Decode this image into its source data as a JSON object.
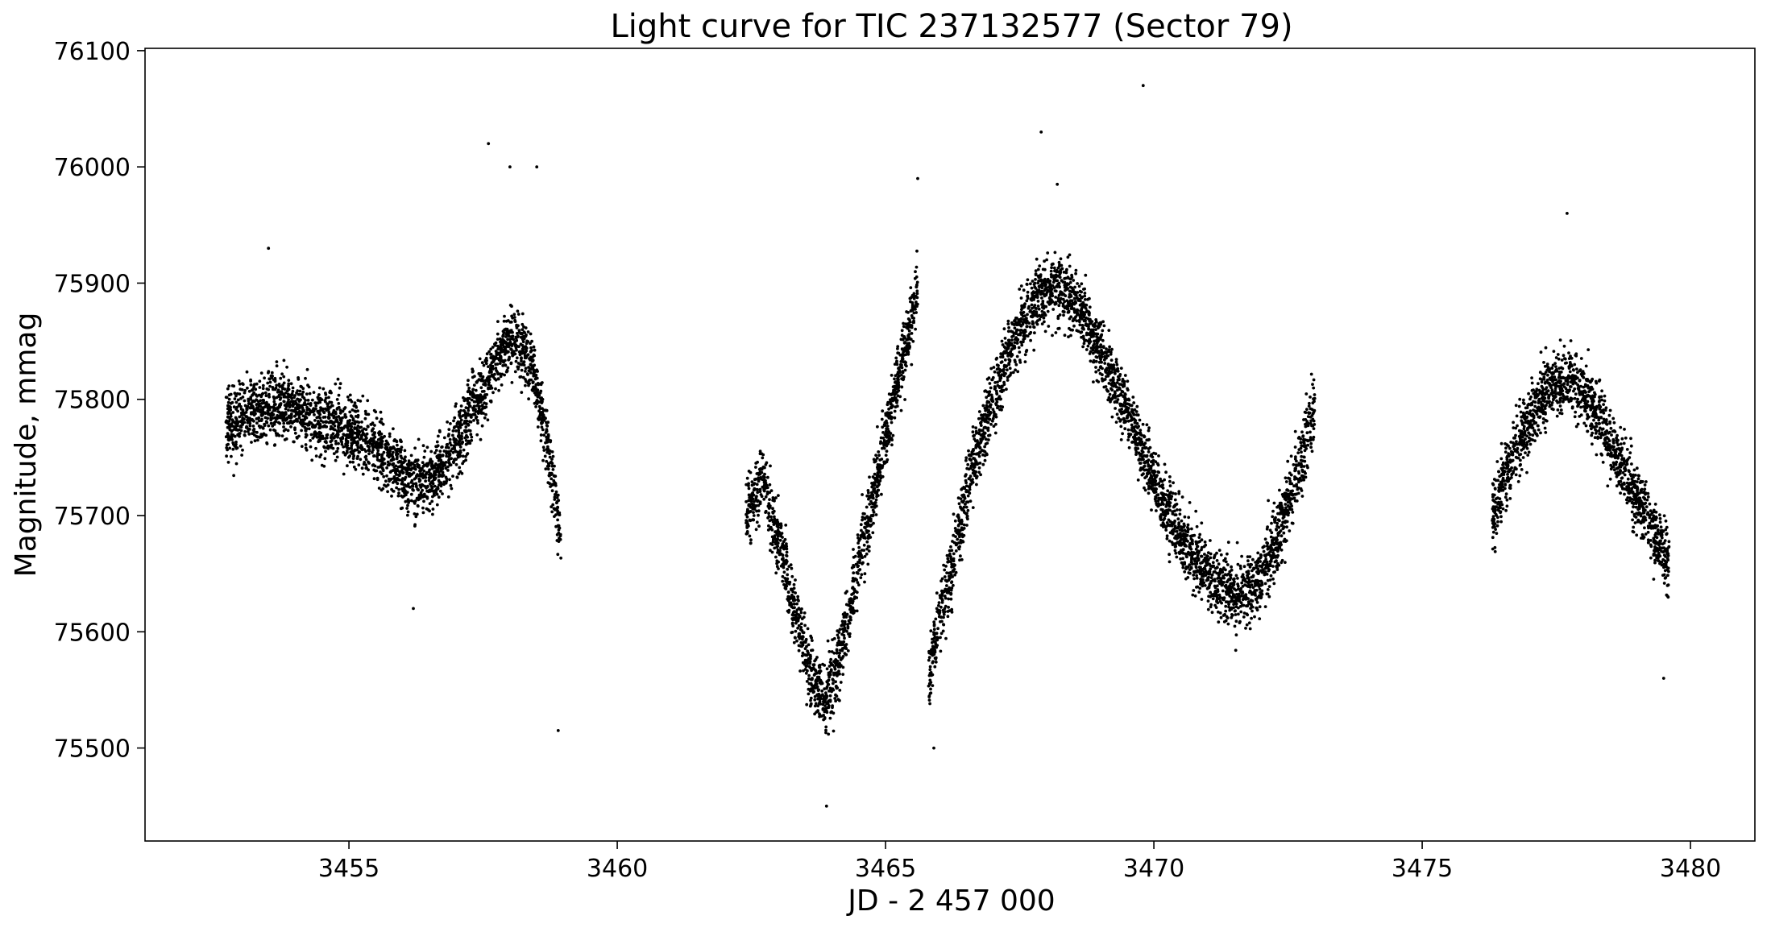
{
  "chart_data": {
    "type": "scatter",
    "title": "Light curve for TIC 237132577 (Sector 79)",
    "xlabel": "JD - 2 457 000",
    "ylabel": "Magnitude, mmag",
    "xlim": [
      3451.2,
      3481.2
    ],
    "ylim": [
      75420,
      76102
    ],
    "x_ticks": [
      3455,
      3460,
      3465,
      3470,
      3475,
      3480
    ],
    "x_tick_labels": [
      "3455",
      "3460",
      "3465",
      "3470",
      "3475",
      "3480"
    ],
    "y_ticks": [
      75500,
      75600,
      75700,
      75800,
      75900,
      76000,
      76100
    ],
    "y_tick_labels": [
      "75500",
      "75600",
      "75700",
      "75800",
      "75900",
      "76000",
      "76100"
    ],
    "grid": false,
    "legend": "none",
    "marker_color": "#000000",
    "series": [
      {
        "segments": [
          {
            "x": [
              3452.7,
              3453.2,
              3453.8,
              3454.4,
              3455.0,
              3455.6,
              3456.1,
              3456.6,
              3457.0,
              3457.4,
              3457.8,
              3458.1,
              3458.4,
              3458.7,
              3458.95
            ],
            "y": [
              75775,
              75790,
              75795,
              75780,
              75775,
              75755,
              75730,
              75730,
              75760,
              75800,
              75840,
              75850,
              75830,
              75760,
              75680
            ]
          },
          {
            "x": [
              3462.4,
              3462.7,
              3463.0,
              3463.3,
              3463.6,
              3463.9,
              3464.2,
              3464.5,
              3464.8,
              3465.1,
              3465.4,
              3465.6
            ],
            "y": [
              75700,
              75730,
              75680,
              75620,
              75565,
              75540,
              75590,
              75660,
              75720,
              75790,
              75850,
              75900
            ]
          },
          {
            "x": [
              3465.8,
              3466.0,
              3466.3,
              3466.6,
              3467.0,
              3467.4,
              3467.8,
              3468.2,
              3468.6,
              3469.0,
              3469.5,
              3470.0,
              3470.5,
              3471.0,
              3471.5,
              3471.9,
              3472.3,
              3472.7,
              3473.0
            ],
            "y": [
              75560,
              75610,
              75670,
              75740,
              75800,
              75850,
              75885,
              75900,
              75880,
              75840,
              75790,
              75730,
              75680,
              75650,
              75630,
              75640,
              75680,
              75740,
              75790
            ]
          },
          {
            "x": [
              3476.3,
              3476.6,
              3476.9,
              3477.2,
              3477.5,
              3477.8,
              3478.1,
              3478.4,
              3478.7,
              3479.0,
              3479.3,
              3479.6
            ],
            "y": [
              75700,
              75740,
              75770,
              75800,
              75815,
              75815,
              75800,
              75775,
              75745,
              75715,
              75690,
              75660
            ]
          }
        ],
        "outliers": {
          "x": [
            3457.6,
            3458.0,
            3458.5,
            3458.9,
            3463.9,
            3465.6,
            3465.9,
            3467.9,
            3468.2,
            3469.8,
            3477.7,
            3479.5,
            3453.5,
            3456.2
          ],
          "y": [
            76020,
            76000,
            76000,
            75515,
            75450,
            75990,
            75500,
            76030,
            75985,
            76070,
            75960,
            75560,
            75930,
            75620
          ]
        }
      }
    ]
  }
}
